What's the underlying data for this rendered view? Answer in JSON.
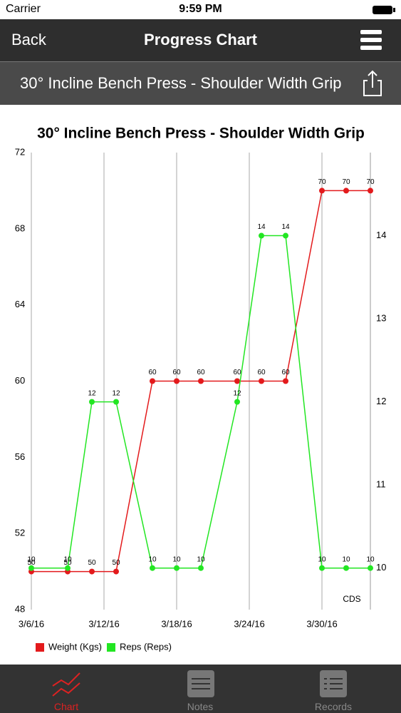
{
  "status_bar": {
    "carrier": "Carrier",
    "time": "9:59 PM"
  },
  "nav": {
    "back": "Back",
    "title": "Progress Chart"
  },
  "subheader": {
    "title": "30° Incline Bench Press - Shoulder Width Grip"
  },
  "chart_data": {
    "type": "line",
    "title": "30° Incline Bench Press - Shoulder Width Grip",
    "x": [
      "2016-03-06",
      "2016-03-09",
      "2016-03-11",
      "2016-03-13",
      "2016-03-16",
      "2016-03-18",
      "2016-03-20",
      "2016-03-23",
      "2016-03-25",
      "2016-03-27",
      "2016-03-30",
      "2016-04-01",
      "2016-04-03"
    ],
    "xlim": [
      "2016-03-06",
      "2016-04-03"
    ],
    "xticks": [
      {
        "value": "2016-03-06",
        "label": "3/6/16"
      },
      {
        "value": "2016-03-12",
        "label": "3/12/16"
      },
      {
        "value": "2016-03-18",
        "label": "3/18/16"
      },
      {
        "value": "2016-03-24",
        "label": "3/24/16"
      },
      {
        "value": "2016-03-30",
        "label": "3/30/16"
      }
    ],
    "ylim": [
      48,
      72
    ],
    "yticks": [
      48,
      52,
      56,
      60,
      64,
      68,
      72
    ],
    "y2lim": [
      9.5,
      15
    ],
    "y2ticks": [
      10,
      11,
      12,
      13,
      14
    ],
    "series": [
      {
        "name": "Weight (Kgs)",
        "color": "#e31a1c",
        "values": [
          50,
          50,
          50,
          50,
          60,
          60,
          60,
          60,
          60,
          60,
          70,
          70,
          70
        ]
      },
      {
        "name": "Reps (Reps)",
        "color": "#22e622",
        "axis": "y2",
        "values": [
          10,
          10,
          12,
          12,
          10,
          10,
          10,
          12,
          14,
          14,
          10,
          10,
          10
        ]
      }
    ],
    "annotation": "CDS",
    "grid": true,
    "legend": "bottom-left"
  },
  "tab_bar": {
    "tabs": [
      "Chart",
      "Notes",
      "Records"
    ]
  }
}
